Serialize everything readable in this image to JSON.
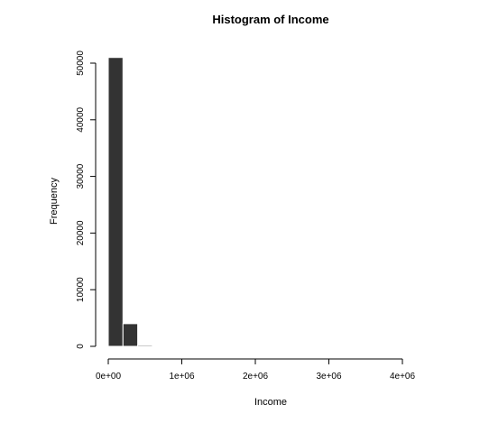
{
  "chart_data": {
    "type": "bar",
    "title": "Histogram of Income",
    "xlabel": "Income",
    "ylabel": "Frequency",
    "xlim": [
      0,
      4000000
    ],
    "ylim": [
      0,
      50000
    ],
    "x_ticks": [
      0,
      1000000,
      2000000,
      3000000,
      4000000
    ],
    "x_tick_labels": [
      "0e+00",
      "1e+06",
      "2e+06",
      "3e+06",
      "4e+06"
    ],
    "y_ticks": [
      0,
      10000,
      20000,
      30000,
      40000,
      50000
    ],
    "y_tick_labels": [
      "0",
      "10000",
      "20000",
      "30000",
      "40000",
      "50000"
    ],
    "bins": [
      {
        "start": 0,
        "end": 200000,
        "count": 51000
      },
      {
        "start": 200000,
        "end": 400000,
        "count": 4000
      },
      {
        "start": 400000,
        "end": 600000,
        "count": 200
      }
    ],
    "bar_color": "#333333",
    "grid": false
  }
}
